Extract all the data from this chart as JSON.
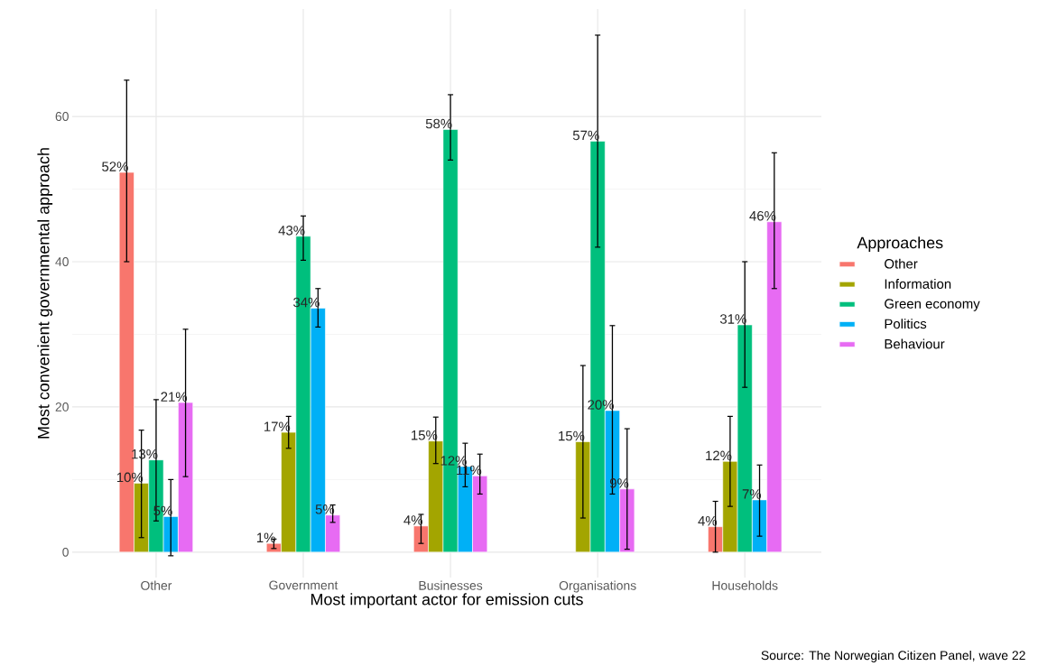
{
  "chart_data": {
    "type": "bar",
    "xlabel": "Most important actor for emission cuts",
    "ylabel": "Most convenient governmental approach",
    "legend_title": "Approaches",
    "categories": [
      "Other",
      "Government",
      "Businesses",
      "Organisations",
      "Households"
    ],
    "series": [
      {
        "name": "Other",
        "color": "#f8766d",
        "values": [
          52.3,
          1.2,
          3.6,
          null,
          3.5
        ],
        "errors": [
          [
            40,
            65
          ],
          [
            0.5,
            1.8
          ],
          [
            1.2,
            5.2
          ],
          null,
          [
            0,
            7
          ]
        ],
        "value_labels": [
          "52%",
          "1%",
          "4%",
          null,
          "4%"
        ]
      },
      {
        "name": "Information",
        "color": "#a3a500",
        "values": [
          9.5,
          16.5,
          15.3,
          15.2,
          12.5
        ],
        "errors": [
          [
            2,
            16.8
          ],
          [
            14.3,
            18.7
          ],
          [
            12.2,
            18.6
          ],
          [
            4.7,
            25.7
          ],
          [
            6.3,
            18.7
          ]
        ],
        "value_labels": [
          "10%",
          "17%",
          "15%",
          "15%",
          "12%"
        ]
      },
      {
        "name": "Green economy",
        "color": "#00bf7d",
        "values": [
          12.7,
          43.5,
          58.2,
          56.6,
          31.3
        ],
        "errors": [
          [
            4.3,
            21
          ],
          [
            40.2,
            46.3
          ],
          [
            54,
            63
          ],
          [
            42,
            71.2
          ],
          [
            22.7,
            40
          ]
        ],
        "value_labels": [
          "13%",
          "43%",
          "58%",
          "57%",
          "31%"
        ]
      },
      {
        "name": "Politics",
        "color": "#00b0f6",
        "values": [
          4.9,
          33.6,
          11.8,
          19.5,
          7.2
        ],
        "errors": [
          [
            -0.5,
            10
          ],
          [
            31,
            36.3
          ],
          [
            9,
            15
          ],
          [
            8,
            31.2
          ],
          [
            2.2,
            12
          ]
        ],
        "value_labels": [
          "5%",
          "34%",
          "12%",
          "20%",
          "7%"
        ]
      },
      {
        "name": "Behaviour",
        "color": "#e76bf3",
        "values": [
          20.6,
          5.1,
          10.5,
          8.7,
          45.5
        ],
        "errors": [
          [
            10.4,
            30.7
          ],
          [
            4.1,
            6.5
          ],
          [
            8,
            13.5
          ],
          [
            0.4,
            17
          ],
          [
            36.3,
            55
          ]
        ],
        "value_labels": [
          "21%",
          "5%",
          "11%",
          "9%",
          "46%"
        ]
      }
    ],
    "ylim": [
      -3.5,
      74.8
    ],
    "yticks": [
      0,
      20,
      40,
      60
    ],
    "grid": true,
    "legend": "right",
    "annotations": [
      "Source: The Norwegian Citizen Panel, wave 22"
    ]
  }
}
